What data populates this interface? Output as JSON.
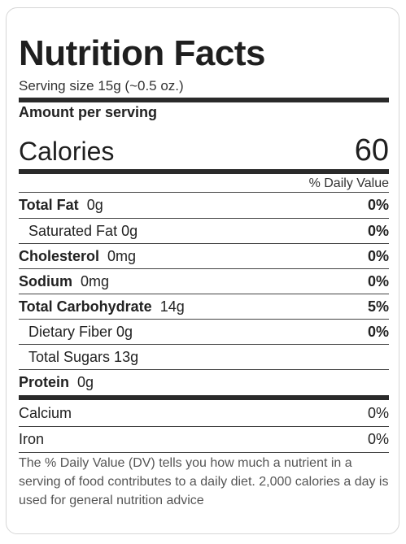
{
  "label": {
    "title": "Nutrition Facts",
    "serving_size": "Serving size 15g (~0.5 oz.)",
    "amount_per_serving": "Amount per serving",
    "calories_label": "Calories",
    "calories_value": "60",
    "daily_value_header": "% Daily Value"
  },
  "nutrients": [
    {
      "name": "Total Fat",
      "amount": "0g",
      "dv": "0%"
    },
    {
      "name": "Saturated Fat 0g",
      "amount": "",
      "dv": "0%"
    },
    {
      "name": "Cholesterol",
      "amount": "0mg",
      "dv": "0%"
    },
    {
      "name": "Sodium",
      "amount": "0mg",
      "dv": "0%"
    },
    {
      "name": "Total Carbohydrate",
      "amount": "14g",
      "dv": "5%"
    },
    {
      "name": "Dietary Fiber 0g",
      "amount": "",
      "dv": "0%"
    },
    {
      "name": "Total Sugars 13g",
      "amount": "",
      "dv": ""
    },
    {
      "name": "Protein",
      "amount": "0g",
      "dv": ""
    }
  ],
  "minerals": [
    {
      "name": "Calcium",
      "dv": "0%"
    },
    {
      "name": "Iron",
      "dv": "0%"
    }
  ],
  "footnote": "The % Daily Value (DV) tells you how much a nutrient in a serving of food contributes to a daily diet. 2,000 calories a day is used for general nutrition advice"
}
